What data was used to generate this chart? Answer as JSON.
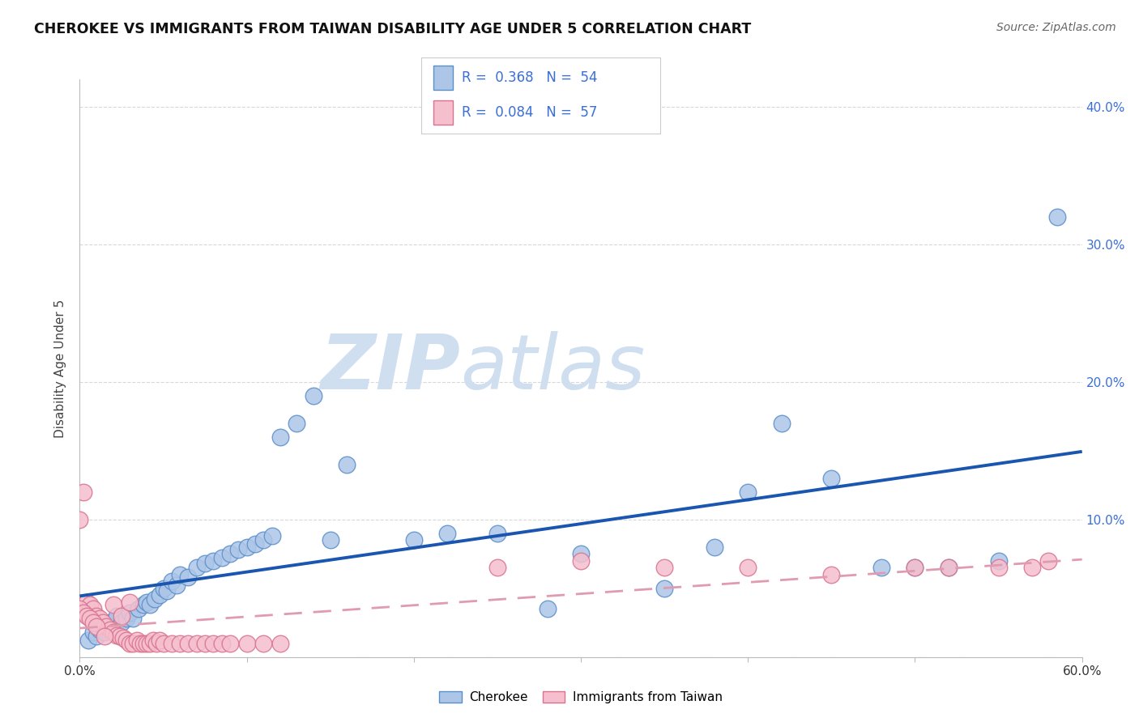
{
  "title": "CHEROKEE VS IMMIGRANTS FROM TAIWAN DISABILITY AGE UNDER 5 CORRELATION CHART",
  "source": "Source: ZipAtlas.com",
  "ylabel": "Disability Age Under 5",
  "xlim": [
    0.0,
    0.6
  ],
  "ylim": [
    0.0,
    0.42
  ],
  "xticks": [
    0.0,
    0.1,
    0.2,
    0.3,
    0.4,
    0.5,
    0.6
  ],
  "yticks": [
    0.0,
    0.1,
    0.2,
    0.3,
    0.4
  ],
  "xtick_labels": [
    "0.0%",
    "",
    "",
    "",
    "",
    "",
    "60.0%"
  ],
  "right_ytick_labels": [
    "",
    "10.0%",
    "20.0%",
    "30.0%",
    "40.0%"
  ],
  "legend_R1": "0.368",
  "legend_N1": "54",
  "legend_R2": "0.084",
  "legend_N2": "57",
  "cherokee_color": "#adc6e8",
  "cherokee_edge_color": "#5b8fc9",
  "taiwan_color": "#f5bfce",
  "taiwan_edge_color": "#d9728e",
  "cherokee_line_color": "#1a56b0",
  "taiwan_line_color": "#e09bb0",
  "watermark_zip": "ZIP",
  "watermark_atlas": "atlas",
  "watermark_color": "#d0dff0",
  "grid_color": "#d8d8d8",
  "cherokee_x": [
    0.005,
    0.008,
    0.01,
    0.012,
    0.015,
    0.018,
    0.02,
    0.022,
    0.025,
    0.028,
    0.03,
    0.032,
    0.035,
    0.038,
    0.04,
    0.042,
    0.045,
    0.048,
    0.05,
    0.052,
    0.055,
    0.058,
    0.06,
    0.065,
    0.07,
    0.075,
    0.08,
    0.085,
    0.09,
    0.095,
    0.1,
    0.105,
    0.11,
    0.115,
    0.12,
    0.13,
    0.14,
    0.15,
    0.16,
    0.2,
    0.22,
    0.25,
    0.28,
    0.3,
    0.35,
    0.38,
    0.4,
    0.42,
    0.45,
    0.48,
    0.5,
    0.52,
    0.55,
    0.585
  ],
  "cherokee_y": [
    0.012,
    0.018,
    0.015,
    0.02,
    0.018,
    0.025,
    0.022,
    0.03,
    0.025,
    0.028,
    0.032,
    0.028,
    0.035,
    0.038,
    0.04,
    0.038,
    0.042,
    0.045,
    0.05,
    0.048,
    0.055,
    0.052,
    0.06,
    0.058,
    0.065,
    0.068,
    0.07,
    0.072,
    0.075,
    0.078,
    0.08,
    0.082,
    0.085,
    0.088,
    0.16,
    0.17,
    0.19,
    0.085,
    0.14,
    0.085,
    0.09,
    0.09,
    0.035,
    0.075,
    0.05,
    0.08,
    0.12,
    0.17,
    0.13,
    0.065,
    0.065,
    0.065,
    0.07,
    0.32
  ],
  "taiwan_x": [
    0.0,
    0.002,
    0.004,
    0.006,
    0.008,
    0.01,
    0.012,
    0.014,
    0.016,
    0.018,
    0.02,
    0.022,
    0.024,
    0.026,
    0.028,
    0.03,
    0.032,
    0.034,
    0.036,
    0.038,
    0.04,
    0.042,
    0.044,
    0.046,
    0.048,
    0.05,
    0.055,
    0.06,
    0.065,
    0.07,
    0.075,
    0.08,
    0.085,
    0.09,
    0.1,
    0.11,
    0.12,
    0.0,
    0.002,
    0.004,
    0.006,
    0.008,
    0.01,
    0.015,
    0.02,
    0.025,
    0.03,
    0.25,
    0.3,
    0.35,
    0.4,
    0.45,
    0.5,
    0.52,
    0.55,
    0.57,
    0.58
  ],
  "taiwan_y": [
    0.1,
    0.12,
    0.04,
    0.038,
    0.035,
    0.03,
    0.028,
    0.025,
    0.022,
    0.02,
    0.018,
    0.016,
    0.015,
    0.014,
    0.012,
    0.01,
    0.01,
    0.012,
    0.01,
    0.01,
    0.01,
    0.01,
    0.012,
    0.01,
    0.012,
    0.01,
    0.01,
    0.01,
    0.01,
    0.01,
    0.01,
    0.01,
    0.01,
    0.01,
    0.01,
    0.01,
    0.01,
    0.035,
    0.032,
    0.03,
    0.028,
    0.025,
    0.022,
    0.015,
    0.038,
    0.03,
    0.04,
    0.065,
    0.07,
    0.065,
    0.065,
    0.06,
    0.065,
    0.065,
    0.065,
    0.065,
    0.07
  ]
}
